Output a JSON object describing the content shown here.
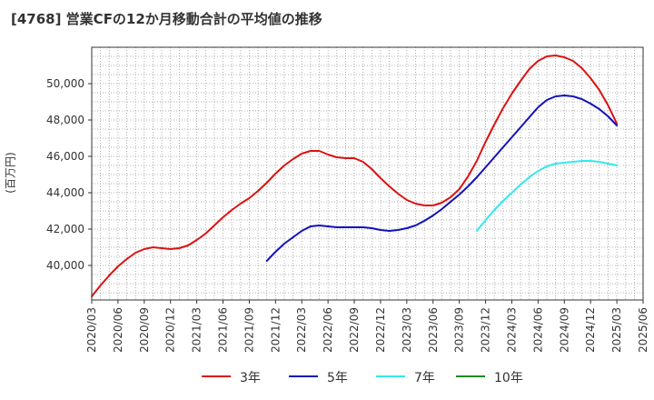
{
  "chart_data": {
    "type": "line",
    "title": "[4768]  営業CFの12か月移動合計の平均値の推移",
    "ylabel": "(百万円)",
    "xlabel": "",
    "ylim": [
      38100,
      52000
    ],
    "xlim": [
      "2020-03",
      "2025-06"
    ],
    "grid": true,
    "legend_position": "bottom",
    "y_ticks": [
      40000,
      42000,
      44000,
      46000,
      48000,
      50000
    ],
    "y_tick_labels": [
      "40,000",
      "42,000",
      "44,000",
      "46,000",
      "48,000",
      "50,000"
    ],
    "x_ticks": [
      "2020/03",
      "2020/06",
      "2020/09",
      "2020/12",
      "2021/03",
      "2021/06",
      "2021/09",
      "2021/12",
      "2022/03",
      "2022/06",
      "2022/09",
      "2022/12",
      "2023/03",
      "2023/06",
      "2023/09",
      "2023/12",
      "2024/03",
      "2024/06",
      "2024/09",
      "2024/12",
      "2025/03",
      "2025/06"
    ],
    "series": [
      {
        "name": "3年",
        "color": "#dd1111",
        "x": [
          "2020-03",
          "2020-04",
          "2020-05",
          "2020-06",
          "2020-07",
          "2020-08",
          "2020-09",
          "2020-10",
          "2020-11",
          "2020-12",
          "2021-01",
          "2021-02",
          "2021-03",
          "2021-04",
          "2021-05",
          "2021-06",
          "2021-07",
          "2021-08",
          "2021-09",
          "2021-10",
          "2021-11",
          "2021-12",
          "2022-01",
          "2022-02",
          "2022-03",
          "2022-04",
          "2022-05",
          "2022-06",
          "2022-07",
          "2022-08",
          "2022-09",
          "2022-10",
          "2022-11",
          "2022-12",
          "2023-01",
          "2023-02",
          "2023-03",
          "2023-04",
          "2023-05",
          "2023-06",
          "2023-07",
          "2023-08",
          "2023-09",
          "2023-10",
          "2023-11",
          "2023-12",
          "2024-01",
          "2024-02",
          "2024-03",
          "2024-04",
          "2024-05",
          "2024-06",
          "2024-07",
          "2024-08",
          "2024-09",
          "2024-10",
          "2024-11",
          "2024-12",
          "2025-01",
          "2025-02",
          "2025-03"
        ],
        "values": [
          38300,
          38900,
          39450,
          39950,
          40350,
          40700,
          40900,
          41000,
          40950,
          40900,
          40950,
          41100,
          41400,
          41750,
          42200,
          42650,
          43050,
          43400,
          43700,
          44100,
          44550,
          45050,
          45500,
          45850,
          46150,
          46300,
          46300,
          46100,
          45950,
          45900,
          45900,
          45700,
          45300,
          44800,
          44350,
          43950,
          43600,
          43400,
          43300,
          43300,
          43450,
          43750,
          44200,
          44900,
          45750,
          46800,
          47750,
          48650,
          49450,
          50150,
          50800,
          51250,
          51500,
          51550,
          51450,
          51250,
          50850,
          50300,
          49650,
          48800,
          47800
        ]
      },
      {
        "name": "5年",
        "color": "#1111bb",
        "x": [
          "2021-11",
          "2021-12",
          "2022-01",
          "2022-02",
          "2022-03",
          "2022-04",
          "2022-05",
          "2022-06",
          "2022-07",
          "2022-08",
          "2022-09",
          "2022-10",
          "2022-11",
          "2022-12",
          "2023-01",
          "2023-02",
          "2023-03",
          "2023-04",
          "2023-05",
          "2023-06",
          "2023-07",
          "2023-08",
          "2023-09",
          "2023-10",
          "2023-11",
          "2023-12",
          "2024-01",
          "2024-02",
          "2024-03",
          "2024-04",
          "2024-05",
          "2024-06",
          "2024-07",
          "2024-08",
          "2024-09",
          "2024-10",
          "2024-11",
          "2024-12",
          "2025-01",
          "2025-02",
          "2025-03"
        ],
        "values": [
          40250,
          40750,
          41200,
          41550,
          41900,
          42150,
          42200,
          42150,
          42100,
          42100,
          42100,
          42100,
          42050,
          41950,
          41900,
          41950,
          42050,
          42200,
          42450,
          42750,
          43100,
          43500,
          43900,
          44350,
          44850,
          45400,
          45950,
          46500,
          47050,
          47600,
          48150,
          48700,
          49100,
          49300,
          49350,
          49300,
          49150,
          48900,
          48600,
          48200,
          47700
        ]
      },
      {
        "name": "7年",
        "color": "#33e8ec",
        "x": [
          "2023-11",
          "2023-12",
          "2024-01",
          "2024-02",
          "2024-03",
          "2024-04",
          "2024-05",
          "2024-06",
          "2024-07",
          "2024-08",
          "2024-09",
          "2024-10",
          "2024-11",
          "2024-12",
          "2025-01",
          "2025-02",
          "2025-03"
        ],
        "values": [
          41900,
          42500,
          43050,
          43550,
          44000,
          44450,
          44850,
          45200,
          45450,
          45600,
          45650,
          45700,
          45750,
          45750,
          45700,
          45600,
          45500
        ]
      },
      {
        "name": "10年",
        "color": "#228822",
        "x": [],
        "values": []
      }
    ]
  }
}
